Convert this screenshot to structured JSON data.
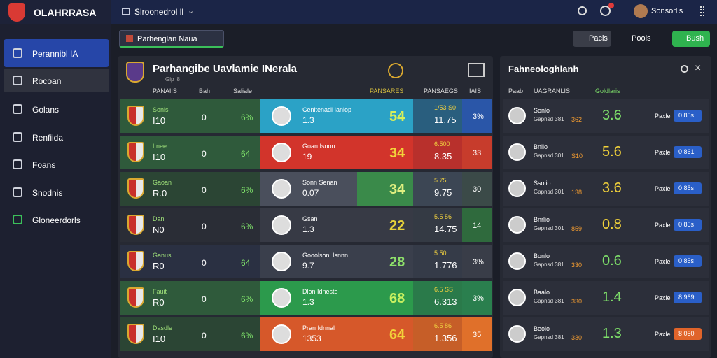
{
  "sidebar": {
    "brand": "OLAHRRASA",
    "menu": [
      "Perannibl IA",
      "Rocoan",
      "Golans",
      "Renfiida",
      "Foans",
      "Snodnis",
      "Gloneerdorls"
    ]
  },
  "topbar": {
    "title": "Slroonedrol ll",
    "user": "Sonsorlls"
  },
  "toolbar": {
    "tab": "Parhenglan Naua",
    "buttons": [
      "Pacls",
      "Pools",
      "Bush"
    ]
  },
  "main": {
    "title": "Parhangibe Uavlamie INerala",
    "subtitle": "Gip i8",
    "columns": [
      "PANAIIS",
      "Bah",
      "Saliale",
      "PANSARES",
      "PANSAEGS",
      "IAIS"
    ],
    "rows": [
      {
        "team": "Sonis",
        "code": "I10",
        "count": "0",
        "pct": "6%",
        "player": "Cenitenadl Ianlop",
        "sub": "1.3",
        "score": "54",
        "odds": "1/53 S0",
        "price": "11.75",
        "rate": "3%"
      },
      {
        "team": "Lnee",
        "code": "I10",
        "count": "0",
        "pct": "64",
        "player": "Goan Isnon",
        "sub": "19",
        "score": "34",
        "odds": "6.500",
        "price": "8.35",
        "rate": "33"
      },
      {
        "team": "Gaoan",
        "code": "R.0",
        "count": "0",
        "pct": "6%",
        "player": "Sonn Senan",
        "sub": "0.07",
        "score": "34",
        "odds": "5.75",
        "price": "9.75",
        "rate": "30"
      },
      {
        "team": "Dan",
        "code": "N0",
        "count": "0",
        "pct": "6%",
        "player": "Gsan",
        "sub": "1.3",
        "score": "22",
        "odds": "5.5 56",
        "price": "14.75",
        "rate": "14"
      },
      {
        "team": "Ganus",
        "code": "R0",
        "count": "0",
        "pct": "64",
        "player": "Gooolsonl Isnnn",
        "sub": "9.7",
        "score": "28",
        "odds": "5.50",
        "price": "1.776",
        "rate": "3%"
      },
      {
        "team": "Fauit",
        "code": "R0",
        "count": "0",
        "pct": "6%",
        "player": "Dlon Idnesto",
        "sub": "1.3",
        "score": "68",
        "odds": "6.5 SS",
        "price": "6.313",
        "rate": "3%"
      },
      {
        "team": "Dasdle",
        "code": "I10",
        "count": "0",
        "pct": "6%",
        "player": "Pran Idnnal",
        "sub": "1353",
        "score": "64",
        "odds": "6.5 86",
        "price": "1.356",
        "rate": "35"
      }
    ]
  },
  "side": {
    "title": "Fahneologhlanh",
    "columns": [
      "Paab",
      "UAGRANLIS",
      "Goldlaris"
    ],
    "rows": [
      {
        "name": "Sonlo",
        "sub": "Gapnsd 381",
        "odds": "362",
        "score": "3.6",
        "label": "Paxle",
        "price": "0.85s"
      },
      {
        "name": "Bnlio",
        "sub": "Gapnsd 301",
        "odds": "S10",
        "score": "5.6",
        "label": "Paxle",
        "price": "0 861"
      },
      {
        "name": "Ssolio",
        "sub": "Gapnsd 301",
        "odds": "138",
        "score": "3.6",
        "label": "Paxle",
        "price": "0 85s"
      },
      {
        "name": "Bnrlio",
        "sub": "Gapnsd 301",
        "odds": "859",
        "score": "0.8",
        "label": "Paxle",
        "price": "0 85s"
      },
      {
        "name": "Bonlo",
        "sub": "Gapnsd 381",
        "odds": "330",
        "score": "0.6",
        "label": "Paxle",
        "price": "0 85s"
      },
      {
        "name": "Baalo",
        "sub": "Gapnsd 381",
        "odds": "330",
        "score": "1.4",
        "label": "Paxle",
        "price": "8 969"
      },
      {
        "name": "Beolo",
        "sub": "Gapnsd 381",
        "odds": "330",
        "score": "1.3",
        "label": "Paxle",
        "price": "8 050"
      }
    ]
  }
}
